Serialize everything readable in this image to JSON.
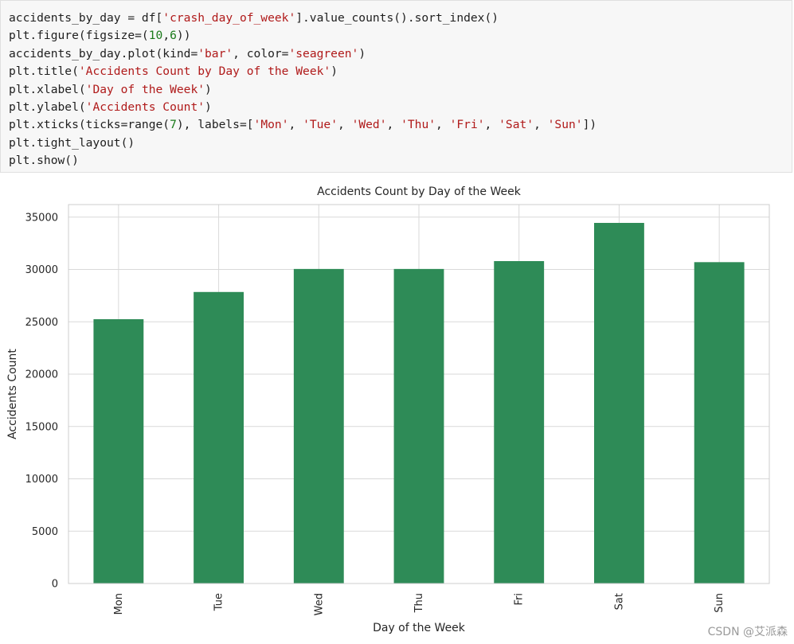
{
  "code": {
    "lines": [
      [
        {
          "t": "accidents_by_day = df[",
          "c": "p"
        },
        {
          "t": "'crash_day_of_week'",
          "c": "s"
        },
        {
          "t": "].value_counts().sort_index()",
          "c": "p"
        }
      ],
      [
        {
          "t": "plt.figure(figsize=(",
          "c": "p"
        },
        {
          "t": "10",
          "c": "n"
        },
        {
          "t": ",",
          "c": "p"
        },
        {
          "t": "6",
          "c": "n"
        },
        {
          "t": "))",
          "c": "p"
        }
      ],
      [
        {
          "t": "accidents_by_day.plot(kind=",
          "c": "p"
        },
        {
          "t": "'bar'",
          "c": "s"
        },
        {
          "t": ", color=",
          "c": "p"
        },
        {
          "t": "'seagreen'",
          "c": "s"
        },
        {
          "t": ")",
          "c": "p"
        }
      ],
      [
        {
          "t": "plt.title(",
          "c": "p"
        },
        {
          "t": "'Accidents Count by Day of the Week'",
          "c": "s"
        },
        {
          "t": ")",
          "c": "p"
        }
      ],
      [
        {
          "t": "plt.xlabel(",
          "c": "p"
        },
        {
          "t": "'Day of the Week'",
          "c": "s"
        },
        {
          "t": ")",
          "c": "p"
        }
      ],
      [
        {
          "t": "plt.ylabel(",
          "c": "p"
        },
        {
          "t": "'Accidents Count'",
          "c": "s"
        },
        {
          "t": ")",
          "c": "p"
        }
      ],
      [
        {
          "t": "plt.xticks(ticks=range(",
          "c": "p"
        },
        {
          "t": "7",
          "c": "n"
        },
        {
          "t": "), labels=[",
          "c": "p"
        },
        {
          "t": "'Mon'",
          "c": "s"
        },
        {
          "t": ", ",
          "c": "p"
        },
        {
          "t": "'Tue'",
          "c": "s"
        },
        {
          "t": ", ",
          "c": "p"
        },
        {
          "t": "'Wed'",
          "c": "s"
        },
        {
          "t": ", ",
          "c": "p"
        },
        {
          "t": "'Thu'",
          "c": "s"
        },
        {
          "t": ", ",
          "c": "p"
        },
        {
          "t": "'Fri'",
          "c": "s"
        },
        {
          "t": ", ",
          "c": "p"
        },
        {
          "t": "'Sat'",
          "c": "s"
        },
        {
          "t": ", ",
          "c": "p"
        },
        {
          "t": "'Sun'",
          "c": "s"
        },
        {
          "t": "])",
          "c": "p"
        }
      ],
      [
        {
          "t": "plt.tight_layout()",
          "c": "p"
        }
      ],
      [
        {
          "t": "plt.show()",
          "c": "p"
        }
      ]
    ]
  },
  "chart_data": {
    "type": "bar",
    "title": "Accidents Count by Day of the Week",
    "xlabel": "Day of the Week",
    "ylabel": "Accidents Count",
    "categories": [
      "Mon",
      "Tue",
      "Wed",
      "Thu",
      "Fri",
      "Sat",
      "Sun"
    ],
    "values": [
      25250,
      27850,
      30050,
      30050,
      30800,
      34450,
      30700
    ],
    "ylim": [
      0,
      36200
    ],
    "yticks": [
      0,
      5000,
      10000,
      15000,
      20000,
      25000,
      30000,
      35000
    ],
    "bar_color": "#2e8b57",
    "grid": true,
    "legend": "none"
  },
  "watermark": "CSDN @艾派森"
}
